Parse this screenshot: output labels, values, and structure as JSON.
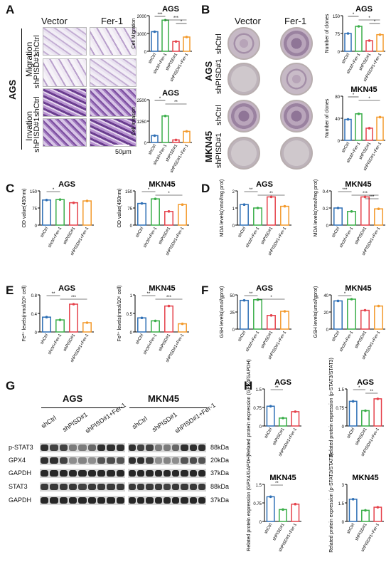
{
  "panel_letters": [
    "A",
    "B",
    "C",
    "D",
    "E",
    "F",
    "G",
    "H"
  ],
  "panelA": {
    "col_headers": [
      "Vector",
      "Fer-1"
    ],
    "cell_label": "AGS",
    "group_labels": [
      "Migration",
      "Invation"
    ],
    "row_labels": [
      "shCtrl",
      "shPISD#1",
      "shCtrl",
      "shPISD#1"
    ],
    "scale_bar": "50μm"
  },
  "panelB": {
    "col_headers": [
      "Vector",
      "Fer-1"
    ],
    "cell_labels": [
      "AGS",
      "MKN45"
    ],
    "row_labels": [
      "shCtrl",
      "shPISD#1",
      "shCtrl",
      "shPISD#1"
    ]
  },
  "panelG": {
    "cell_labels": [
      "AGS",
      "MKN45"
    ],
    "lane_labels": [
      "shCtrl",
      "shPISD#1",
      "shPISD#1+Fer-1"
    ],
    "protein_labels": [
      "p-STAT3",
      "GPX4",
      "GAPDH",
      "STAT3",
      "GAPDH"
    ],
    "kda_labels": [
      "88kDa",
      "20kDa",
      "37kDa",
      "88kDa",
      "37kDa"
    ]
  },
  "chart_data": [
    {
      "type": "bar",
      "panel": "A",
      "title": "AGS",
      "ylabel": "Cell Migration",
      "categories": [
        "shCtrl",
        "shctrl+Fer-1",
        "shPISD#1",
        "shPISD#1+Fer-1"
      ],
      "values": [
        1100,
        1750,
        550,
        800
      ],
      "ylim": [
        0,
        2000
      ],
      "significance": [
        "***",
        "***",
        "*"
      ]
    },
    {
      "type": "bar",
      "panel": "A",
      "title": "AGS",
      "ylabel": "Cell Invasion",
      "categories": [
        "shCtrl",
        "shctrl+Fer-1",
        "shPISD#1",
        "shPISD#1+Fer-1"
      ],
      "values": [
        400,
        1550,
        150,
        650
      ],
      "ylim": [
        0,
        2500
      ],
      "significance": [
        "*",
        "**"
      ]
    },
    {
      "type": "bar",
      "panel": "B",
      "title": "AGS",
      "ylabel": "Number of clones",
      "categories": [
        "shCtrl",
        "shctrl+Fer-1",
        "shPISD#1",
        "shPISD#1+Fer-1"
      ],
      "values": [
        75,
        105,
        45,
        70
      ],
      "ylim": [
        0,
        150
      ],
      "significance": [
        "*",
        "*",
        "*"
      ]
    },
    {
      "type": "bar",
      "panel": "B",
      "title": "MKN45",
      "ylabel": "Number of clones",
      "categories": [
        "shCtrl",
        "shctrl+Fer-1",
        "shPISD#1",
        "shPISD#1+Fer-1"
      ],
      "values": [
        38,
        48,
        22,
        42
      ],
      "ylim": [
        0,
        80
      ],
      "significance": [
        "*",
        "*"
      ]
    },
    {
      "type": "bar",
      "panel": "C",
      "title": "AGS",
      "ylabel": "OD value(450nm)",
      "categories": [
        "shCtrl",
        "shctrl+Fer-1",
        "shPISD#1",
        "shPISD#1+Fer-1"
      ],
      "values": [
        110,
        112,
        98,
        106
      ],
      "ylim": [
        0,
        150
      ],
      "significance": [
        "*"
      ]
    },
    {
      "type": "bar",
      "panel": "C",
      "title": "MKN45",
      "ylabel": "OD value(450nm)",
      "categories": [
        "shCtrl",
        "shctrl+Fer-1",
        "shPISD#1",
        "shPISD#1+Fer-1"
      ],
      "values": [
        95,
        115,
        60,
        90
      ],
      "ylim": [
        0,
        150
      ],
      "significance": [
        "*",
        "*"
      ]
    },
    {
      "type": "bar",
      "panel": "D",
      "title": "AGS",
      "ylabel": "MDA levels(nmol/mg prot)",
      "categories": [
        "shCtrl",
        "shctrl+Fer-1",
        "shPISD#1",
        "shPISD#1+Fer-1"
      ],
      "values": [
        1.2,
        1.0,
        1.65,
        1.1
      ],
      "ylim": [
        0,
        2.0
      ],
      "significance": [
        "**",
        "**"
      ]
    },
    {
      "type": "bar",
      "panel": "D",
      "title": "MKN45",
      "ylabel": "MDA levels(nmol/mg prot)",
      "categories": [
        "shCtrl",
        "shctrl+Fer-1",
        "shPISD#1",
        "shPISD#1+Fer-1"
      ],
      "values": [
        0.2,
        0.16,
        0.33,
        0.19
      ],
      "ylim": [
        0,
        0.4
      ],
      "significance": [
        "***",
        "***",
        "***"
      ]
    },
    {
      "type": "bar",
      "panel": "E",
      "title": "AGS",
      "ylabel": "Fe²⁺ levels(nmol/10⁶ cell)",
      "categories": [
        "shCtrl",
        "shctrl+Fer-1",
        "shPISD#1",
        "shPISD#1+Fer-1"
      ],
      "values": [
        0.32,
        0.26,
        0.6,
        0.2
      ],
      "ylim": [
        0,
        0.8
      ],
      "significance": [
        "**",
        "***"
      ]
    },
    {
      "type": "bar",
      "panel": "E",
      "title": "MKN45",
      "ylabel": "Fe²⁺ levels(nmol/10⁶ cell)",
      "categories": [
        "shCtrl",
        "shctrl+Fer-1",
        "shPISD#1",
        "shPISD#1+Fer-1"
      ],
      "values": [
        0.38,
        0.3,
        0.7,
        0.22
      ],
      "ylim": [
        0,
        1.0
      ],
      "significance": [
        "**",
        "***"
      ]
    },
    {
      "type": "bar",
      "panel": "F",
      "title": "AGS",
      "ylabel": "GSH levels(umol/gprot)",
      "categories": [
        "shCtrl",
        "shctrl+Fer-1",
        "shPISD#1",
        "shPISD#1+Fer-1"
      ],
      "values": [
        42,
        43,
        20,
        26
      ],
      "ylim": [
        0,
        50
      ],
      "significance": [
        "**",
        "*"
      ]
    },
    {
      "type": "bar",
      "panel": "F",
      "title": "MKN45",
      "ylabel": "GSH levels(umol/gprot)",
      "categories": [
        "shCtrl",
        "shctrl+Fer-1",
        "shPISD#1",
        "shPISD#1+Fer-1"
      ],
      "values": [
        33,
        35,
        22,
        27
      ],
      "ylim": [
        0,
        40
      ],
      "significance": [
        "*"
      ]
    },
    {
      "type": "bar",
      "panel": "H",
      "title": "AGS",
      "ylabel": "Related protein expression (GPX4/GAPDH)",
      "categories": [
        "shCtrl",
        "shPISD#1",
        "shPISD#1+Fer-1"
      ],
      "values": [
        0.8,
        0.32,
        0.58
      ],
      "ylim": [
        0,
        1.5
      ],
      "significance": [
        "**"
      ]
    },
    {
      "type": "bar",
      "panel": "H",
      "title": "AGS",
      "ylabel": "Related protein expression (p-STAT3/STAT3)",
      "categories": [
        "shCtrl",
        "shPISD#1",
        "shPISD#1+Fer-1"
      ],
      "values": [
        1.0,
        0.62,
        1.1
      ],
      "ylim": [
        0,
        1.5
      ],
      "significance": [
        "*",
        "**"
      ]
    },
    {
      "type": "bar",
      "panel": "H",
      "title": "MKN45",
      "ylabel": "Related protein expression (GPX4/GAPDH)",
      "categories": [
        "shCtrl",
        "shPISD#1",
        "shPISD#1+Fer-1"
      ],
      "values": [
        1.0,
        0.48,
        0.7
      ],
      "ylim": [
        0,
        1.5
      ],
      "significance": [
        "**"
      ]
    },
    {
      "type": "bar",
      "panel": "H",
      "title": "MKN45",
      "ylabel": "Related protein expression (p-STAT3/STAT3)",
      "categories": [
        "shCtrl",
        "shPISD#1",
        "shPISD#1+Fer-1"
      ],
      "values": [
        1.8,
        0.9,
        1.15
      ],
      "ylim": [
        0,
        3
      ],
      "significance": []
    }
  ],
  "colors": {
    "blue": "#2e6fb5",
    "green": "#3aae49",
    "red": "#e5424b",
    "orange": "#f39a2c"
  }
}
